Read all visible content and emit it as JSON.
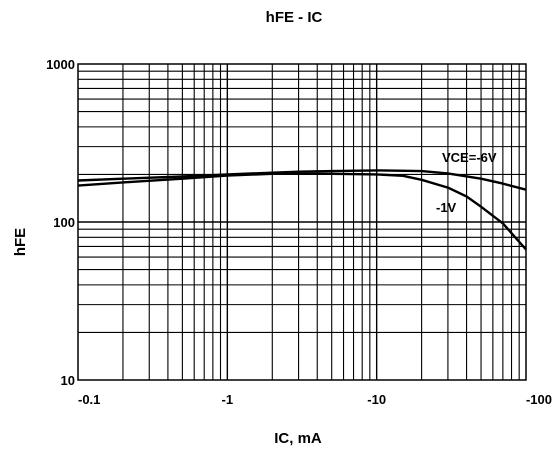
{
  "chart_data": {
    "type": "line",
    "title": "hFE - IC",
    "xlabel": "IC, mA",
    "ylabel": "hFE",
    "x_scale": "log",
    "y_scale": "log",
    "x_ticks": [
      "-0.1",
      "-1",
      "-10",
      "-100"
    ],
    "y_ticks": [
      "10",
      "100",
      "1000"
    ],
    "xlim": [
      -0.1,
      -100
    ],
    "ylim": [
      10,
      1000
    ],
    "grid": true,
    "series": [
      {
        "name": "VCE=-6V",
        "x": [
          -0.1,
          -0.2,
          -0.5,
          -1,
          -2,
          -3,
          -5,
          -10,
          -20,
          -30,
          -50,
          -70,
          -100
        ],
        "y": [
          183,
          188,
          194,
          200,
          205,
          208,
          210,
          212,
          210,
          203,
          188,
          175,
          160
        ]
      },
      {
        "name": "-1V",
        "x": [
          -0.1,
          -0.2,
          -0.5,
          -1,
          -2,
          -3,
          -5,
          -10,
          -15,
          -20,
          -30,
          -40,
          -50,
          -70,
          -100
        ],
        "y": [
          170,
          178,
          188,
          197,
          202,
          202,
          202,
          200,
          196,
          185,
          165,
          145,
          125,
          98,
          67
        ]
      }
    ]
  },
  "annotations": {
    "label_6v": "VCE=-6V",
    "label_1v": "-1V"
  }
}
